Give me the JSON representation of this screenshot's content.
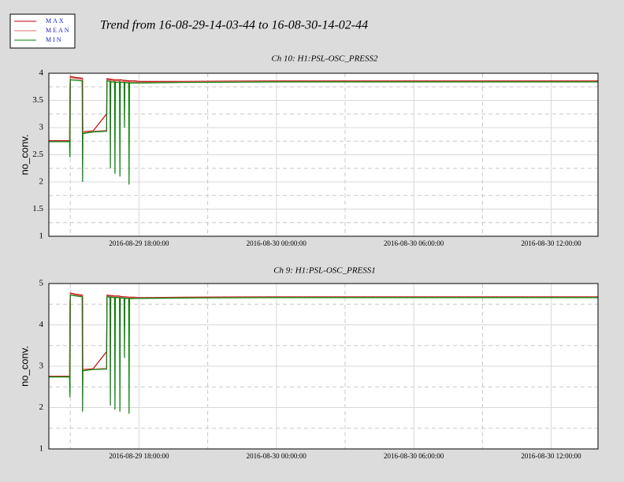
{
  "title": "Trend from 16-08-29-14-03-44 to 16-08-30-14-02-44",
  "chart_data": [
    {
      "type": "line",
      "title": "Ch 10: H1:PSL-OSC_PRESS2",
      "y_label": "no_conv.",
      "x": [
        "2016-08-29 14:04:00",
        "2016-08-29 14:58:00",
        "2016-08-29 14:59:00",
        "2016-08-29 15:00:00",
        "2016-08-29 15:15:00",
        "2016-08-29 15:31:00",
        "2016-08-29 15:32:00",
        "2016-08-29 15:33:00",
        "2016-08-29 16:00:00",
        "2016-08-29 16:35:00",
        "2016-08-29 16:36:00",
        "2016-08-29 16:44:00",
        "2016-08-29 16:45:00",
        "2016-08-29 16:46:00",
        "2016-08-29 16:56:00",
        "2016-08-29 16:57:00",
        "2016-08-29 16:58:00",
        "2016-08-29 17:09:00",
        "2016-08-29 17:10:00",
        "2016-08-29 17:11:00",
        "2016-08-29 17:21:00",
        "2016-08-29 17:22:00",
        "2016-08-29 17:23:00",
        "2016-08-29 17:33:00",
        "2016-08-29 17:34:00",
        "2016-08-29 17:35:00",
        "2016-08-29 17:50:00",
        "2016-08-29 18:00:00",
        "2016-08-29 20:00:00",
        "2016-08-30 00:00:00",
        "2016-08-30 06:00:00",
        "2016-08-30 12:00:00",
        "2016-08-30 14:02:00"
      ],
      "series": [
        {
          "name": "MAX",
          "color": "#c00000",
          "values": [
            2.76,
            2.76,
            3.75,
            3.94,
            3.92,
            3.91,
            3.9,
            2.92,
            2.94,
            3.25,
            3.9,
            3.89,
            3.88,
            3.89,
            3.88,
            3.87,
            3.88,
            3.88,
            3.87,
            3.88,
            3.87,
            3.86,
            3.87,
            3.86,
            3.8,
            3.86,
            3.86,
            3.85,
            3.85,
            3.86,
            3.86,
            3.86,
            3.86
          ]
        },
        {
          "name": "MEAN",
          "color": "#e07070",
          "values": [
            2.75,
            2.75,
            3.2,
            3.92,
            3.9,
            3.89,
            3.3,
            2.91,
            2.93,
            2.95,
            3.88,
            3.87,
            3.6,
            3.87,
            3.86,
            3.5,
            3.86,
            3.86,
            3.4,
            3.85,
            3.85,
            3.5,
            3.85,
            3.84,
            3.2,
            3.84,
            3.84,
            3.83,
            3.84,
            3.85,
            3.85,
            3.85,
            3.85
          ]
        },
        {
          "name": "MIN",
          "color": "#008000",
          "values": [
            2.74,
            2.74,
            2.45,
            3.88,
            3.87,
            3.86,
            2.0,
            2.89,
            2.92,
            2.93,
            3.86,
            3.85,
            2.25,
            3.84,
            3.84,
            2.15,
            3.83,
            3.84,
            2.1,
            3.83,
            3.83,
            3.0,
            3.83,
            3.82,
            1.95,
            3.82,
            3.82,
            3.82,
            3.83,
            3.84,
            3.84,
            3.84,
            3.84
          ]
        }
      ],
      "xlim": [
        "2016-08-29 14:03:44",
        "2016-08-30 14:02:44"
      ],
      "xticks": [
        "2016-08-29 18:00:00",
        "2016-08-30 00:00:00",
        "2016-08-30 06:00:00",
        "2016-08-30 12:00:00"
      ],
      "x_minor_ticks": [
        "2016-08-29 15:00:00",
        "2016-08-29 21:00:00",
        "2016-08-30 03:00:00",
        "2016-08-30 09:00:00"
      ],
      "ylim": [
        1,
        4
      ],
      "yticks": [
        1,
        1.5,
        2,
        2.5,
        3,
        3.5,
        4
      ],
      "y_minor_ticks": [
        1.25,
        1.75,
        2.25,
        2.75,
        3.25,
        3.75
      ],
      "grid": true
    },
    {
      "type": "line",
      "title": "Ch 9: H1:PSL-OSC_PRESS1",
      "y_label": "no_conv.",
      "x": [
        "2016-08-29 14:04:00",
        "2016-08-29 14:58:00",
        "2016-08-29 14:59:00",
        "2016-08-29 15:00:00",
        "2016-08-29 15:15:00",
        "2016-08-29 15:31:00",
        "2016-08-29 15:32:00",
        "2016-08-29 15:33:00",
        "2016-08-29 16:00:00",
        "2016-08-29 16:35:00",
        "2016-08-29 16:36:00",
        "2016-08-29 16:44:00",
        "2016-08-29 16:45:00",
        "2016-08-29 16:46:00",
        "2016-08-29 16:56:00",
        "2016-08-29 16:57:00",
        "2016-08-29 16:58:00",
        "2016-08-29 17:09:00",
        "2016-08-29 17:10:00",
        "2016-08-29 17:11:00",
        "2016-08-29 17:21:00",
        "2016-08-29 17:22:00",
        "2016-08-29 17:23:00",
        "2016-08-29 17:33:00",
        "2016-08-29 17:34:00",
        "2016-08-29 17:35:00",
        "2016-08-29 17:50:00",
        "2016-08-29 18:00:00",
        "2016-08-29 20:00:00",
        "2016-08-30 00:00:00",
        "2016-08-30 06:00:00",
        "2016-08-30 12:00:00",
        "2016-08-30 14:02:00"
      ],
      "series": [
        {
          "color": "#c00000",
          "values": [
            2.76,
            2.76,
            4.5,
            4.77,
            4.74,
            4.72,
            4.7,
            2.92,
            2.94,
            3.35,
            4.72,
            4.71,
            4.7,
            4.71,
            4.7,
            4.69,
            4.7,
            4.7,
            4.69,
            4.69,
            4.68,
            4.68,
            4.68,
            4.67,
            4.6,
            4.67,
            4.67,
            4.66,
            4.67,
            4.68,
            4.68,
            4.68,
            4.68
          ]
        },
        {
          "color": "#e07070",
          "values": [
            2.75,
            2.75,
            3.6,
            4.75,
            4.72,
            4.7,
            3.5,
            2.91,
            2.93,
            2.95,
            4.7,
            4.69,
            4.3,
            4.69,
            4.68,
            3.8,
            4.68,
            4.68,
            3.7,
            4.67,
            4.67,
            4.0,
            4.66,
            4.66,
            3.3,
            4.65,
            4.66,
            4.65,
            4.66,
            4.67,
            4.67,
            4.67,
            4.67
          ]
        },
        {
          "color": "#008000",
          "values": [
            2.74,
            2.74,
            2.25,
            4.72,
            4.7,
            4.68,
            1.9,
            2.89,
            2.92,
            2.93,
            4.68,
            4.67,
            2.05,
            4.67,
            4.66,
            1.95,
            4.66,
            4.66,
            1.9,
            4.65,
            4.65,
            3.2,
            4.64,
            4.64,
            1.85,
            4.63,
            4.64,
            4.64,
            4.65,
            4.66,
            4.66,
            4.66,
            4.66
          ]
        }
      ],
      "xlim": [
        "2016-08-29 14:03:44",
        "2016-08-30 14:02:44"
      ],
      "xticks": [
        "2016-08-29 18:00:00",
        "2016-08-30 00:00:00",
        "2016-08-30 06:00:00",
        "2016-08-30 12:00:00"
      ],
      "x_minor_ticks": [
        "2016-08-29 15:00:00",
        "2016-08-29 21:00:00",
        "2016-08-30 03:00:00",
        "2016-08-30 09:00:00"
      ],
      "ylim": [
        1,
        5
      ],
      "yticks": [
        1,
        2,
        3,
        4,
        5
      ],
      "y_minor_ticks": [
        1.5,
        2.5,
        3.5,
        4.5
      ],
      "grid": true
    }
  ]
}
